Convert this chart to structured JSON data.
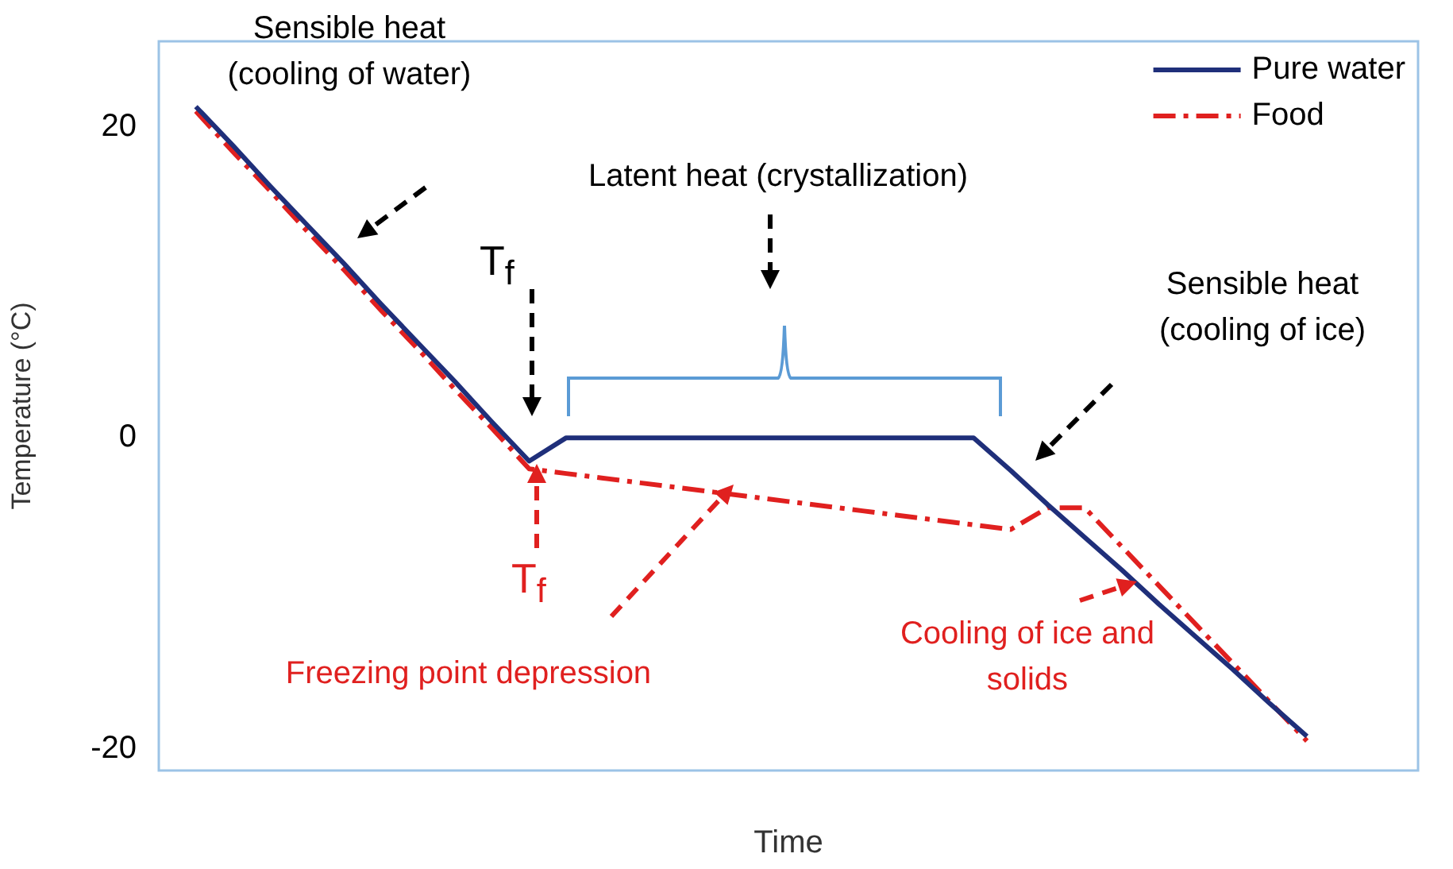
{
  "chart_data": {
    "type": "line",
    "ylabel": "Temperature (°C)",
    "xlabel": "Time",
    "ylim": [
      -21.4,
      25.5
    ],
    "yticks": [
      -20,
      0,
      20
    ],
    "tick_labels": "y",
    "grid": false,
    "legend": "top right",
    "marker": "none",
    "categories": [
      null,
      null,
      null,
      null,
      null,
      null,
      null,
      null,
      null,
      null,
      null,
      null,
      null,
      null,
      null,
      null,
      null,
      null,
      null,
      null,
      null,
      null,
      null,
      null,
      null,
      null,
      null,
      null,
      null,
      null,
      null,
      null,
      null,
      null,
      null
    ],
    "series": [
      {
        "name": "Pure water",
        "color": "#1f2f7a",
        "line_style": "solid",
        "values": [
          null,
          21.3,
          18.8,
          16.2,
          13.7,
          11.2,
          8.6,
          6.1,
          3.6,
          1.0,
          -1.5,
          0,
          0,
          0,
          0,
          0,
          0,
          0,
          0,
          0,
          0,
          0,
          0,
          -2.1,
          -4.3,
          -6.4,
          -8.5,
          -10.7,
          -12.8,
          -14.9,
          -17.1,
          -19.2,
          null,
          null,
          null
        ]
      },
      {
        "name": "Food",
        "color": "#e0201f",
        "line_style": "dashed",
        "values": [
          null,
          21,
          18.4,
          15.9,
          13.3,
          10.8,
          8.2,
          5.7,
          3.1,
          0.6,
          -2,
          -2.3,
          -2.6,
          -2.9,
          -3.2,
          -3.5,
          -3.8,
          -4.1,
          -4.4,
          -4.7,
          -5.0,
          -5.3,
          -5.6,
          -5.9,
          -4.5,
          -4.5,
          -7,
          -9.5,
          -12,
          -14.5,
          -17,
          -19.5,
          null,
          null,
          null
        ]
      }
    ],
    "annotations": [
      "Sensible heat (cooling of water)",
      "Latent heat (crystallization)",
      "T$_{f}$",
      "Sensible heat (cooling of ice)",
      "T$_{f}$",
      "Freezing point depression",
      "Cooling of ice and solids"
    ]
  }
}
